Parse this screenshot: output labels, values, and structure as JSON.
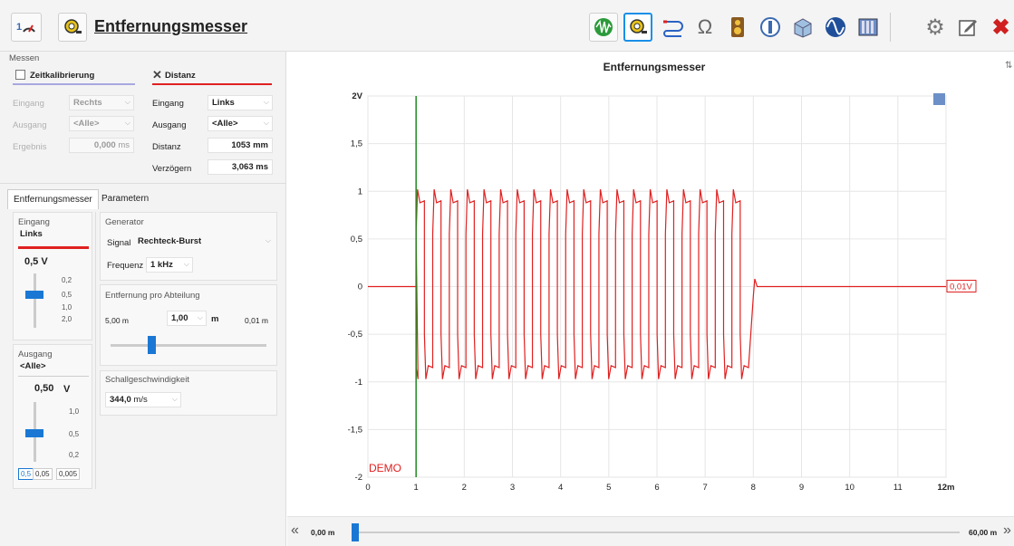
{
  "app": {
    "logo_text": "1",
    "title": "Entfernungsmesser"
  },
  "toolbar_icons": [
    "oscilloscope-icon",
    "distance-meter-icon",
    "cable-icon",
    "ohm-icon",
    "speaker-icon",
    "level-icon",
    "room-icon",
    "waveform-icon",
    "panel-icon",
    "gear-icon",
    "edit-icon",
    "close-icon"
  ],
  "measure": {
    "section_label": "Messen",
    "time_cal": {
      "label": "Zeitkalibrierung",
      "eingang_label": "Eingang",
      "eingang": "Rechts",
      "ausgang_label": "Ausgang",
      "ausgang": "<Alle>",
      "ergebnis_label": "Ergebnis",
      "ergebnis": "0,000",
      "ergebnis_unit": "ms"
    },
    "distance": {
      "label": "Distanz",
      "eingang_label": "Eingang",
      "eingang": "Links",
      "ausgang_label": "Ausgang",
      "ausgang": "<Alle>",
      "distanz_label": "Distanz",
      "distanz": "1053",
      "distanz_unit": "mm",
      "verz_label": "Verzögern",
      "verz": "3,063",
      "verz_unit": "ms"
    }
  },
  "tabs": [
    "Entfernungsmesser",
    "Parametern"
  ],
  "input": {
    "label": "Eingang",
    "channel": "Links",
    "value": "0,5 V",
    "scale": [
      "0,2",
      "0,5",
      "1,0",
      "2,0"
    ]
  },
  "output": {
    "label": "Ausgang",
    "channel": "<Alle>",
    "value": "0,50",
    "unit": "V",
    "scale": [
      "1,0",
      "0,5",
      "0,2"
    ],
    "steps": [
      "0,5",
      "0,05",
      "0,005"
    ]
  },
  "generator": {
    "label": "Generator",
    "signal_label": "Signal",
    "signal": "Rechteck-Burst",
    "freq_label": "Frequenz",
    "freq": "1 kHz"
  },
  "range": {
    "label": "Entfernung pro Abteilung",
    "min": "5,00 m",
    "value": "1,00",
    "unit": "m",
    "max": "0,01 m"
  },
  "sound": {
    "label": "Schallgeschwindigkeit",
    "value": "344,0",
    "unit": "m/s"
  },
  "chart_data": {
    "type": "line",
    "title": "Entfernungsmesser",
    "x_ticks": [
      "0",
      "1",
      "2",
      "3",
      "4",
      "5",
      "6",
      "7",
      "8",
      "9",
      "10",
      "11",
      "12m"
    ],
    "y_ticks": [
      "2V",
      "1,5",
      "1",
      "0,5",
      "0",
      "-0,5",
      "-1",
      "-1,5",
      "-2"
    ],
    "xlim": [
      0,
      12
    ],
    "ylim": [
      -2,
      2
    ],
    "burst": {
      "start": 1.0,
      "end": 8.0,
      "high": 1.0,
      "low": -0.95,
      "period": 0.345
    },
    "marker_x": 1.0,
    "marker_color": "#1f8a1f",
    "series_color": "#e02020",
    "level_label": "0,01V",
    "watermark": "DEMO",
    "grid": true
  },
  "scroll": {
    "left": "0,00 m",
    "right": "60,00 m"
  }
}
